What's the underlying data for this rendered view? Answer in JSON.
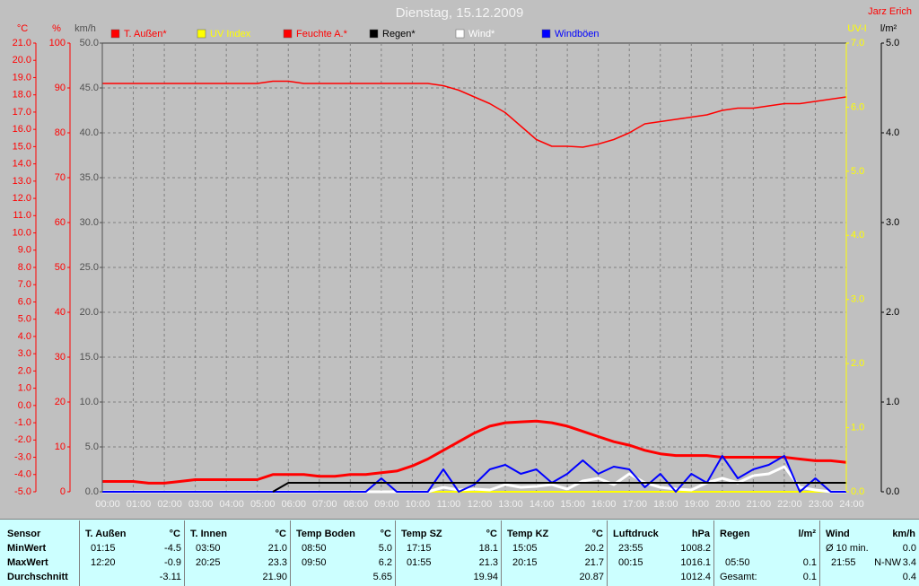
{
  "chart_data": {
    "type": "line",
    "title": "Dienstag, 15.12.2009",
    "author": "Jarz Erich",
    "grid": true,
    "background": "#c0c0c0",
    "x": [
      0,
      0.5,
      1,
      1.5,
      2,
      2.5,
      3,
      3.5,
      4,
      4.5,
      5,
      5.5,
      6,
      6.5,
      7,
      7.5,
      8,
      8.5,
      9,
      9.5,
      10,
      10.5,
      11,
      11.5,
      12,
      12.5,
      13,
      13.5,
      14,
      14.5,
      15,
      15.5,
      16,
      16.5,
      17,
      17.5,
      18,
      18.5,
      19,
      19.5,
      20,
      20.5,
      21,
      21.5,
      22,
      22.5,
      23,
      23.5,
      24
    ],
    "xlim": [
      0,
      24
    ],
    "xticks": [
      {
        "value": 0,
        "label": "00:00"
      },
      {
        "value": 1,
        "label": "01:00"
      },
      {
        "value": 2,
        "label": "02:00"
      },
      {
        "value": 3,
        "label": "03:00"
      },
      {
        "value": 4,
        "label": "04:00"
      },
      {
        "value": 5,
        "label": "05:00"
      },
      {
        "value": 6,
        "label": "06:00"
      },
      {
        "value": 7,
        "label": "07:00"
      },
      {
        "value": 8,
        "label": "08:00"
      },
      {
        "value": 9,
        "label": "09:00"
      },
      {
        "value": 10,
        "label": "10:00"
      },
      {
        "value": 11,
        "label": "11:00"
      },
      {
        "value": 12,
        "label": "12:00"
      },
      {
        "value": 13,
        "label": "13:00"
      },
      {
        "value": 14,
        "label": "14:00"
      },
      {
        "value": 15,
        "label": "15:00"
      },
      {
        "value": 16,
        "label": "16:00"
      },
      {
        "value": 17,
        "label": "17:00"
      },
      {
        "value": 18,
        "label": "18:00"
      },
      {
        "value": 19,
        "label": "19:00"
      },
      {
        "value": 20,
        "label": "20:00"
      },
      {
        "value": 21,
        "label": "21:00"
      },
      {
        "value": 22,
        "label": "22:00"
      },
      {
        "value": 23,
        "label": "23:00"
      },
      {
        "value": 24,
        "label": "24:00"
      }
    ],
    "axes": {
      "temp": {
        "unit": "°C",
        "color": "#ff0000",
        "lim": [
          -5,
          21
        ],
        "ticks": [
          {
            "value": -5,
            "label": "-5.0"
          },
          {
            "value": -4,
            "label": "-4.0"
          },
          {
            "value": -3,
            "label": "-3.0"
          },
          {
            "value": -2,
            "label": "-2.0"
          },
          {
            "value": -1,
            "label": "-1.0"
          },
          {
            "value": 0,
            "label": "0.0"
          },
          {
            "value": 1,
            "label": "1.0"
          },
          {
            "value": 2,
            "label": "2.0"
          },
          {
            "value": 3,
            "label": "3.0"
          },
          {
            "value": 4,
            "label": "4.0"
          },
          {
            "value": 5,
            "label": "5.0"
          },
          {
            "value": 6,
            "label": "6.0"
          },
          {
            "value": 7,
            "label": "7.0"
          },
          {
            "value": 8,
            "label": "8.0"
          },
          {
            "value": 9,
            "label": "9.0"
          },
          {
            "value": 10,
            "label": "10.0"
          },
          {
            "value": 11,
            "label": "11.0"
          },
          {
            "value": 12,
            "label": "12.0"
          },
          {
            "value": 13,
            "label": "13.0"
          },
          {
            "value": 14,
            "label": "14.0"
          },
          {
            "value": 15,
            "label": "15.0"
          },
          {
            "value": 16,
            "label": "16.0"
          },
          {
            "value": 17,
            "label": "17.0"
          },
          {
            "value": 18,
            "label": "18.0"
          },
          {
            "value": 19,
            "label": "19.0"
          },
          {
            "value": 20,
            "label": "20.0"
          },
          {
            "value": 21,
            "label": "21.0"
          }
        ]
      },
      "hum": {
        "unit": "%",
        "color": "#ff0000",
        "lim": [
          0,
          100
        ],
        "ticks": [
          0,
          10,
          20,
          30,
          40,
          50,
          60,
          70,
          80,
          90,
          100
        ]
      },
      "wind": {
        "unit": "km/h",
        "color": "#505050",
        "lim": [
          0,
          50
        ],
        "ticks": [
          {
            "value": 0,
            "label": "0.0"
          },
          {
            "value": 5,
            "label": "5.0"
          },
          {
            "value": 10,
            "label": "10.0"
          },
          {
            "value": 15,
            "label": "15.0"
          },
          {
            "value": 20,
            "label": "20.0"
          },
          {
            "value": 25,
            "label": "25.0"
          },
          {
            "value": 30,
            "label": "30.0"
          },
          {
            "value": 35,
            "label": "35.0"
          },
          {
            "value": 40,
            "label": "40.0"
          },
          {
            "value": 45,
            "label": "45.0"
          },
          {
            "value": 50,
            "label": "50.0"
          }
        ]
      },
      "uv": {
        "unit": "UV-I",
        "color": "#ffff00",
        "lim": [
          0,
          7
        ],
        "ticks": [
          {
            "value": 0,
            "label": "0.0"
          },
          {
            "value": 1,
            "label": "1.0"
          },
          {
            "value": 2,
            "label": "2.0"
          },
          {
            "value": 3,
            "label": "3.0"
          },
          {
            "value": 4,
            "label": "4.0"
          },
          {
            "value": 5,
            "label": "5.0"
          },
          {
            "value": 6,
            "label": "6.0"
          },
          {
            "value": 7,
            "label": "7.0"
          }
        ]
      },
      "rain": {
        "unit": "l/m²",
        "color": "#000000",
        "lim": [
          0,
          5
        ],
        "ticks": [
          {
            "value": 0,
            "label": "0.0"
          },
          {
            "value": 1,
            "label": "1.0"
          },
          {
            "value": 2,
            "label": "2.0"
          },
          {
            "value": 3,
            "label": "3.0"
          },
          {
            "value": 4,
            "label": "4.0"
          },
          {
            "value": 5,
            "label": "5.0"
          }
        ]
      }
    },
    "series": [
      {
        "name": "T. Außen*",
        "color": "#ff0000",
        "axis": "temp",
        "width": 3,
        "values": [
          -4.4,
          -4.4,
          -4.4,
          -4.5,
          -4.5,
          -4.4,
          -4.3,
          -4.3,
          -4.3,
          -4.3,
          -4.3,
          -4.0,
          -4.0,
          -4.0,
          -4.1,
          -4.1,
          -4.0,
          -4.0,
          -3.9,
          -3.8,
          -3.5,
          -3.1,
          -2.6,
          -2.1,
          -1.6,
          -1.2,
          -1.0,
          -0.95,
          -0.9,
          -1.0,
          -1.2,
          -1.5,
          -1.8,
          -2.1,
          -2.3,
          -2.6,
          -2.8,
          -2.9,
          -2.9,
          -2.9,
          -3.0,
          -3.0,
          -3.0,
          -3.0,
          -3.0,
          -3.1,
          -3.2,
          -3.2,
          -3.3
        ]
      },
      {
        "name": "UV Index",
        "color": "#ffff00",
        "axis": "uv",
        "width": 2,
        "values": [
          0,
          0,
          0,
          0,
          0,
          0,
          0,
          0,
          0,
          0,
          0,
          0,
          0,
          0,
          0,
          0,
          0,
          0,
          0,
          0,
          0,
          0,
          0,
          0,
          0,
          0,
          0,
          0,
          0,
          0,
          0,
          0,
          0,
          0,
          0,
          0,
          0,
          0,
          0,
          0,
          0,
          0,
          0,
          0,
          0,
          0,
          0,
          0,
          0
        ]
      },
      {
        "name": "Feuchte A.*",
        "color": "#ff0000",
        "axis": "hum",
        "width": 1.5,
        "values": [
          91,
          91,
          91,
          91,
          91,
          91,
          91,
          91,
          91,
          91,
          91,
          91.5,
          91.5,
          91,
          91,
          91,
          91,
          91,
          91,
          91,
          91,
          91,
          90.5,
          89.5,
          88,
          86.5,
          84.5,
          81.5,
          78.5,
          77,
          77,
          76.8,
          77.5,
          78.5,
          80,
          82,
          82.5,
          83,
          83.5,
          84,
          85,
          85.5,
          85.5,
          86,
          86.5,
          86.5,
          87,
          87.5,
          88
        ]
      },
      {
        "name": "Regen*",
        "color": "#000000",
        "axis": "rain",
        "width": 2,
        "values": [
          null,
          null,
          null,
          null,
          null,
          null,
          null,
          null,
          null,
          null,
          null,
          0,
          0.1,
          0.1,
          0.1,
          0.1,
          0.1,
          0.1,
          0.1,
          0.1,
          0.1,
          0.1,
          0.1,
          0.1,
          0.1,
          0.1,
          0.1,
          0.1,
          0.1,
          0.1,
          0.1,
          0.1,
          0.1,
          0.1,
          0.1,
          0.1,
          0.1,
          0.1,
          0.1,
          0.1,
          0.1,
          0.1,
          0.1,
          0.1,
          0.1,
          0.1,
          0.1,
          0.1,
          0.1
        ]
      },
      {
        "name": "Wind*",
        "color": "#ffffff",
        "axis": "wind",
        "width": 3,
        "values": [
          0,
          0,
          0,
          0,
          0,
          0,
          0,
          0,
          0,
          0,
          0,
          0,
          0,
          0,
          0,
          0,
          0,
          0,
          0,
          0,
          0,
          0,
          0.5,
          0.2,
          0.3,
          0.2,
          0.8,
          0.5,
          0.6,
          0.8,
          0.3,
          1.2,
          1.5,
          0.8,
          2.0,
          1.0,
          0.5,
          0.3,
          0.2,
          1.0,
          1.5,
          1.0,
          1.8,
          2.0,
          2.8,
          0.5,
          0.2,
          0,
          0
        ]
      },
      {
        "name": "Windböen",
        "color": "#0000ff",
        "axis": "wind",
        "width": 2,
        "values": [
          0,
          0,
          0,
          0,
          0,
          0,
          0,
          0,
          0,
          0,
          0,
          0,
          0,
          0,
          0,
          0,
          0,
          0,
          1.5,
          0,
          0,
          0,
          2.5,
          0,
          0.8,
          2.5,
          3.0,
          2.0,
          2.5,
          1.0,
          2.0,
          3.5,
          2.0,
          2.8,
          2.5,
          0.5,
          2.0,
          0,
          2.0,
          1.0,
          4.0,
          1.5,
          2.5,
          3.0,
          4.0,
          0,
          1.5,
          0,
          0
        ]
      }
    ]
  },
  "table": {
    "row_labels": [
      "Sensor",
      "MinWert",
      "MaxWert",
      "Durchschnitt"
    ],
    "columns": [
      {
        "name": "T. Außen",
        "unit": "°C",
        "min": {
          "time": "01:15",
          "value": "-4.5"
        },
        "max": {
          "time": "12:20",
          "value": "-0.9"
        },
        "avg": {
          "value": "-3.11"
        }
      },
      {
        "name": "T. Innen",
        "unit": "°C",
        "min": {
          "time": "03:50",
          "value": "21.0"
        },
        "max": {
          "time": "20:25",
          "value": "23.3"
        },
        "avg": {
          "value": "21.90"
        }
      },
      {
        "name": "Temp Boden",
        "unit": "°C",
        "min": {
          "time": "08:50",
          "value": "5.0"
        },
        "max": {
          "time": "09:50",
          "value": "6.2"
        },
        "avg": {
          "value": "5.65"
        }
      },
      {
        "name": "Temp SZ",
        "unit": "°C",
        "min": {
          "time": "17:15",
          "value": "18.1"
        },
        "max": {
          "time": "01:55",
          "value": "21.3"
        },
        "avg": {
          "value": "19.94"
        }
      },
      {
        "name": "Temp KZ",
        "unit": "°C",
        "min": {
          "time": "15:05",
          "value": "20.2"
        },
        "max": {
          "time": "20:15",
          "value": "21.7"
        },
        "avg": {
          "value": "20.87"
        }
      },
      {
        "name": "Luftdruck",
        "unit": "hPa",
        "min": {
          "time": "23:55",
          "value": "1008.2"
        },
        "max": {
          "time": "00:15",
          "value": "1016.1"
        },
        "avg": {
          "value": "1012.4"
        }
      },
      {
        "name": "Regen",
        "unit": "l/m²",
        "min": null,
        "max": {
          "time": "05:50",
          "value": "0.1"
        },
        "avg": {
          "label": "Gesamt:",
          "value": "0.1"
        }
      },
      {
        "name": "Wind",
        "unit": "km/h",
        "min": {
          "label": "Ø 10 min.",
          "value": "0.0"
        },
        "max": {
          "time": "21:55",
          "label": "N-NW",
          "value": "3.4"
        },
        "avg": {
          "value": "0.4"
        }
      }
    ]
  }
}
